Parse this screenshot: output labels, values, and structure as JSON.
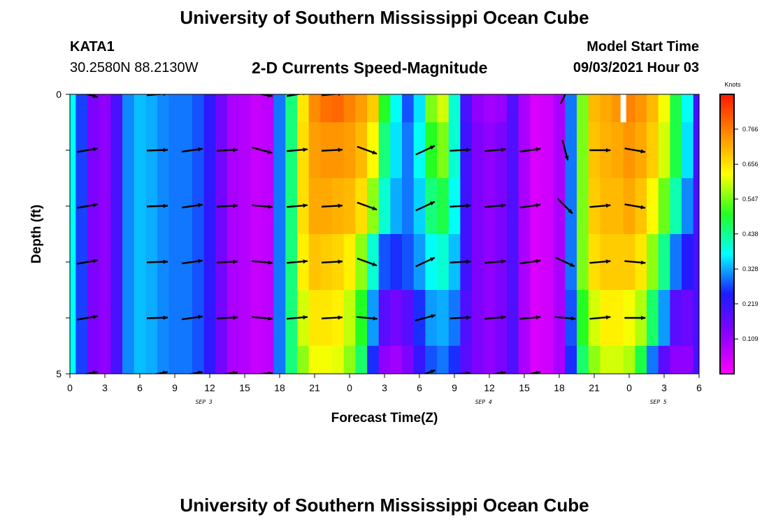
{
  "page": {
    "title": "University of Southern Mississippi Ocean Cube",
    "footer_title": "University of Southern Mississippi Ocean Cube",
    "station_id": "KATA1",
    "station_coords": "30.2580N  88.2130W",
    "model_start_label": "Model Start Time",
    "model_start_time": "09/03/2021 Hour 03"
  },
  "colors": {
    "magenta": "#ff00ff",
    "purple": "#8a00ff",
    "blue": "#1c1cff",
    "cyan": "#00ffff",
    "green": "#23ff23",
    "yellow": "#ffff00",
    "orange": "#ff8c00",
    "red": "#ff1800",
    "arrow": "#000000",
    "missing": "#ffffff"
  },
  "chart_data": {
    "type": "heatmap",
    "title": "2-D Currents Speed-Magnitude",
    "xlabel": "Forecast Time(Z)",
    "ylabel": "Depth (ft)",
    "units": "Knots",
    "x_ticks": [
      "0",
      "3",
      "6",
      "9",
      "12",
      "15",
      "18",
      "21",
      "0",
      "3",
      "6",
      "9",
      "12",
      "15",
      "18",
      "21",
      "0",
      "3",
      "6"
    ],
    "x_range_hours": [
      0,
      54
    ],
    "date_labels": [
      {
        "label": "SEP 3",
        "hour": 11.5
      },
      {
        "label": "SEP 4",
        "hour": 35.5
      },
      {
        "label": "SEP 5",
        "hour": 50.5
      }
    ],
    "y_ticks": [
      "0",
      "5"
    ],
    "y_range": [
      0,
      5
    ],
    "colorbar_ticks": [
      "0.766",
      "0.656",
      "0.547",
      "0.438",
      "0.328",
      "0.219",
      "0.109"
    ],
    "colorbar_range": [
      0,
      0.875
    ],
    "hours": [
      0,
      1,
      2,
      3,
      4,
      5,
      6,
      7,
      8,
      9,
      10,
      11,
      12,
      13,
      14,
      15,
      16,
      17,
      18,
      19,
      20,
      21,
      22,
      23,
      24,
      25,
      26,
      27,
      28,
      29,
      30,
      31,
      32,
      33,
      34,
      35,
      36,
      37,
      38,
      39,
      40,
      41,
      42,
      43,
      44,
      45,
      46,
      47,
      48,
      49,
      50,
      51,
      52,
      53,
      54
    ],
    "depths_ft": [
      0,
      1,
      2,
      3,
      4,
      5
    ],
    "speed": [
      [
        0.38,
        0.27,
        0.14,
        0.12,
        0.2,
        0.31,
        0.34,
        0.33,
        0.31,
        0.3,
        0.3,
        0.28,
        0.23,
        0.15,
        0.09,
        0.08,
        0.06,
        0.07,
        0.3,
        0.45,
        0.65,
        0.75,
        0.78,
        0.79,
        0.76,
        0.73,
        0.68,
        0.5,
        0.38,
        0.28,
        0.36,
        0.55,
        0.6,
        0.4,
        0.2,
        0.12,
        0.1,
        0.11,
        0.19,
        0.09,
        0.04,
        0.05,
        0.09,
        0.3,
        0.55,
        0.7,
        0.72,
        0.74,
        0.76,
        0.74,
        0.7,
        0.62,
        0.48,
        0.38,
        0.2
      ],
      [
        0.38,
        0.27,
        0.14,
        0.12,
        0.2,
        0.31,
        0.34,
        0.33,
        0.31,
        0.3,
        0.3,
        0.28,
        0.23,
        0.15,
        0.09,
        0.08,
        0.06,
        0.07,
        0.3,
        0.45,
        0.66,
        0.73,
        0.74,
        0.74,
        0.73,
        0.7,
        0.63,
        0.45,
        0.36,
        0.3,
        0.38,
        0.5,
        0.55,
        0.4,
        0.21,
        0.14,
        0.12,
        0.14,
        0.19,
        0.09,
        0.04,
        0.05,
        0.09,
        0.3,
        0.55,
        0.69,
        0.71,
        0.72,
        0.74,
        0.72,
        0.68,
        0.6,
        0.48,
        0.36,
        0.2
      ],
      [
        0.38,
        0.27,
        0.14,
        0.12,
        0.2,
        0.31,
        0.34,
        0.33,
        0.31,
        0.3,
        0.3,
        0.28,
        0.23,
        0.15,
        0.09,
        0.08,
        0.06,
        0.07,
        0.3,
        0.45,
        0.66,
        0.72,
        0.72,
        0.71,
        0.7,
        0.66,
        0.56,
        0.4,
        0.33,
        0.3,
        0.35,
        0.45,
        0.48,
        0.38,
        0.21,
        0.14,
        0.12,
        0.14,
        0.19,
        0.09,
        0.04,
        0.05,
        0.09,
        0.3,
        0.55,
        0.68,
        0.7,
        0.7,
        0.72,
        0.69,
        0.63,
        0.54,
        0.42,
        0.31,
        0.2
      ],
      [
        0.38,
        0.27,
        0.14,
        0.12,
        0.2,
        0.31,
        0.34,
        0.33,
        0.31,
        0.3,
        0.3,
        0.28,
        0.23,
        0.15,
        0.09,
        0.08,
        0.06,
        0.07,
        0.3,
        0.45,
        0.64,
        0.69,
        0.68,
        0.67,
        0.64,
        0.56,
        0.4,
        0.28,
        0.26,
        0.28,
        0.32,
        0.38,
        0.4,
        0.34,
        0.21,
        0.14,
        0.12,
        0.14,
        0.19,
        0.09,
        0.04,
        0.05,
        0.09,
        0.3,
        0.55,
        0.66,
        0.68,
        0.68,
        0.68,
        0.65,
        0.56,
        0.44,
        0.3,
        0.24,
        0.2
      ],
      [
        0.38,
        0.27,
        0.14,
        0.12,
        0.2,
        0.31,
        0.34,
        0.33,
        0.31,
        0.3,
        0.3,
        0.28,
        0.23,
        0.15,
        0.09,
        0.08,
        0.06,
        0.07,
        0.3,
        0.45,
        0.6,
        0.65,
        0.65,
        0.64,
        0.59,
        0.5,
        0.32,
        0.18,
        0.15,
        0.18,
        0.26,
        0.32,
        0.33,
        0.3,
        0.19,
        0.14,
        0.12,
        0.14,
        0.19,
        0.09,
        0.04,
        0.05,
        0.09,
        0.28,
        0.5,
        0.6,
        0.64,
        0.64,
        0.62,
        0.58,
        0.46,
        0.32,
        0.18,
        0.16,
        0.2
      ],
      [
        0.38,
        0.27,
        0.14,
        0.12,
        0.2,
        0.31,
        0.34,
        0.33,
        0.31,
        0.3,
        0.3,
        0.28,
        0.23,
        0.15,
        0.09,
        0.08,
        0.06,
        0.07,
        0.3,
        0.45,
        0.56,
        0.62,
        0.62,
        0.61,
        0.56,
        0.46,
        0.26,
        0.12,
        0.1,
        0.14,
        0.22,
        0.28,
        0.3,
        0.26,
        0.18,
        0.14,
        0.12,
        0.14,
        0.19,
        0.09,
        0.04,
        0.05,
        0.09,
        0.26,
        0.46,
        0.56,
        0.6,
        0.6,
        0.58,
        0.48,
        0.3,
        0.18,
        0.12,
        0.12,
        0.2
      ]
    ],
    "missing_cells": [
      {
        "hour": 47.5,
        "depth": 0
      }
    ],
    "vector_hours": [
      1.5,
      7.5,
      10.5,
      13.5,
      16.5,
      19.5,
      22.5,
      25.5,
      30.5,
      33.5,
      36.5,
      39.5,
      42.5,
      45.5,
      48.5
    ],
    "vector_depths_ft": [
      0,
      1,
      2,
      3,
      4,
      5
    ],
    "vector_angles_deg": [
      [
        15,
        -5,
        null,
        null,
        10,
        -10,
        -5,
        null,
        null,
        null,
        null,
        null,
        -65,
        null,
        null
      ],
      [
        -10,
        -2,
        -8,
        -3,
        15,
        -5,
        -3,
        20,
        -25,
        -3,
        -5,
        -8,
        75,
        0,
        10
      ],
      [
        -10,
        -2,
        -8,
        -3,
        5,
        -5,
        -3,
        20,
        -25,
        -3,
        -5,
        -8,
        45,
        -5,
        10
      ],
      [
        -10,
        -2,
        -8,
        -3,
        5,
        -5,
        -3,
        20,
        -25,
        -3,
        -5,
        -8,
        25,
        -5,
        5
      ],
      [
        -10,
        -2,
        -8,
        -3,
        5,
        -5,
        -3,
        5,
        -15,
        -3,
        -5,
        -5,
        5,
        -5,
        0
      ],
      [
        -10,
        -10,
        -10,
        -8,
        -3,
        null,
        null,
        null,
        -20,
        -3,
        -8,
        -10,
        null,
        null,
        null
      ]
    ]
  }
}
